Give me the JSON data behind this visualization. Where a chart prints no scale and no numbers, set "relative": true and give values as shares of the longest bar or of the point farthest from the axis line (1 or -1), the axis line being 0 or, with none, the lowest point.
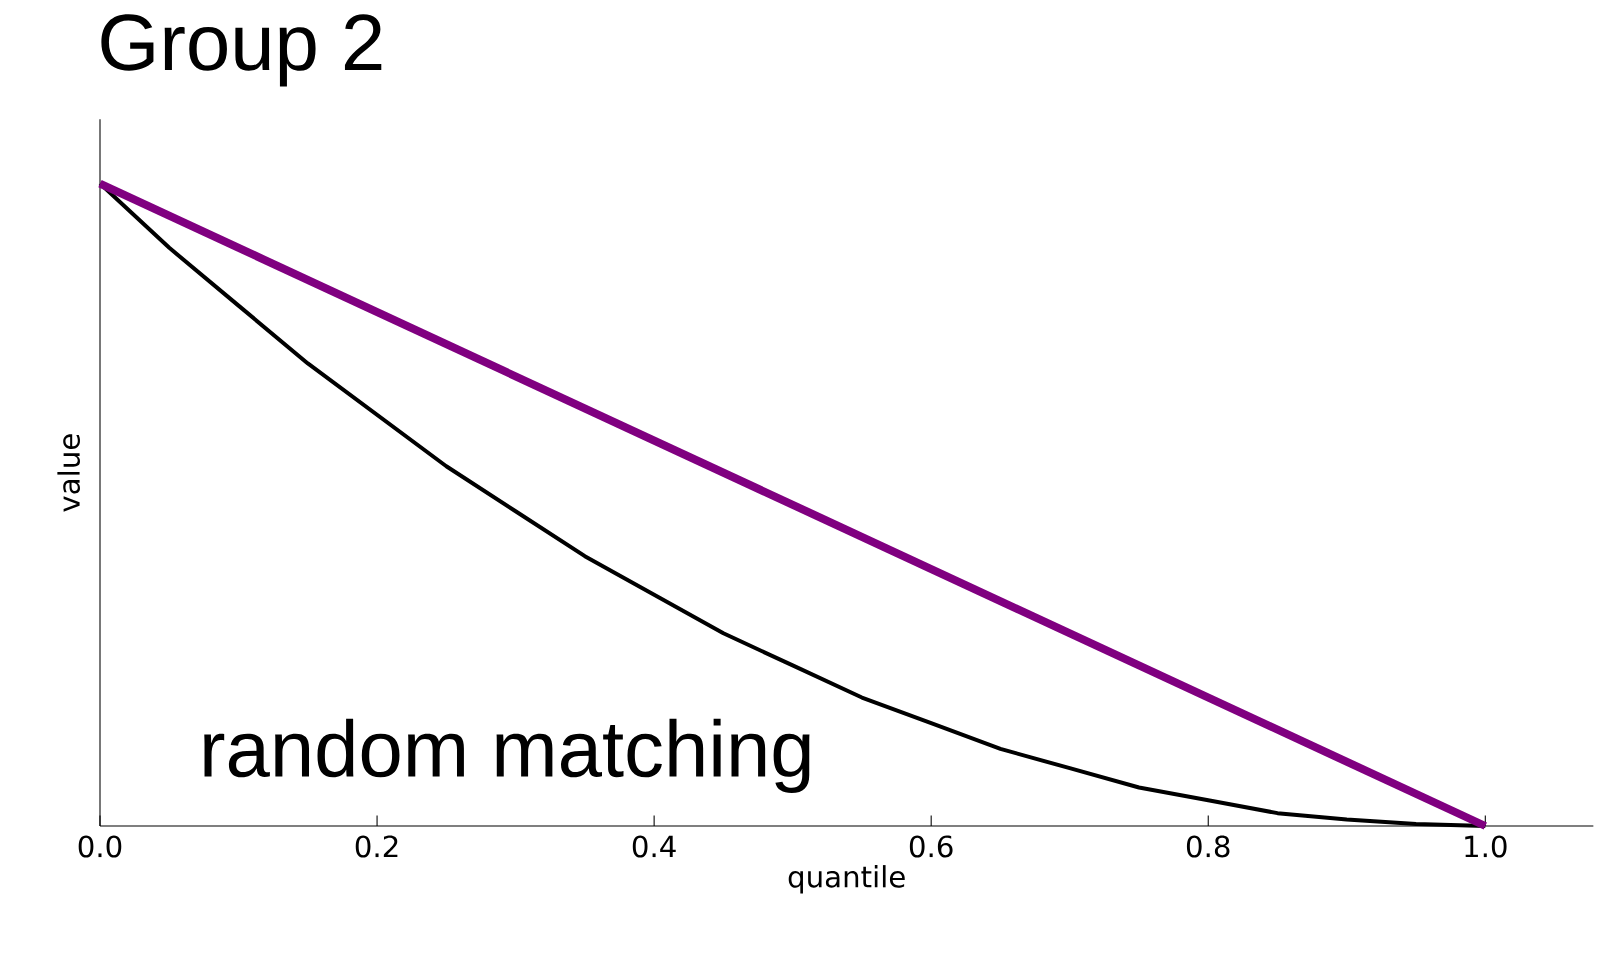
{
  "chart_data": {
    "type": "line",
    "title": "Group 2",
    "xlabel": "quantile",
    "ylabel": "value",
    "relative": true,
    "xlim": [
      0,
      1.078
    ],
    "xticks": [
      {
        "value": 0,
        "label": "0.0"
      },
      {
        "value": 0.2,
        "label": "0.2"
      },
      {
        "value": 0.4,
        "label": "0.4"
      },
      {
        "value": 0.6,
        "label": "0.6"
      },
      {
        "value": 0.8,
        "label": "0.8"
      },
      {
        "value": 1,
        "label": "1.0"
      }
    ],
    "tick_labels": "x",
    "annotations": [
      "random matching"
    ],
    "series": [
      {
        "color": "#000000",
        "x": [
          0,
          0.05,
          0.1,
          0.15,
          0.2,
          0.25,
          0.3,
          0.35,
          0.4,
          0.45,
          0.5,
          0.55,
          0.6,
          0.65,
          0.7,
          0.75,
          0.8,
          0.85,
          0.9,
          0.95,
          1.0
        ],
        "values": [
          1,
          0.9,
          0.81,
          0.72,
          0.64,
          0.56,
          0.49,
          0.42,
          0.36,
          0.3,
          0.25,
          0.2,
          0.16,
          0.12,
          0.09,
          0.06,
          0.04,
          0.02,
          0.01,
          0.003,
          0
        ]
      },
      {
        "color": "#800080",
        "x": [
          0,
          1
        ],
        "values": [
          1,
          0
        ]
      }
    ]
  }
}
